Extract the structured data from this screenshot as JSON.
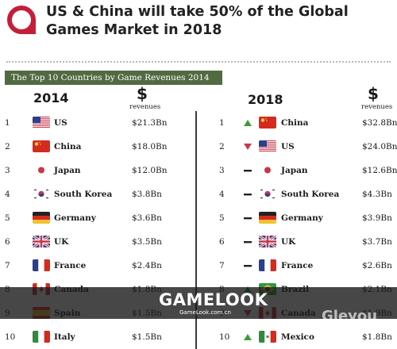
{
  "title": "US & China will take 50% of the Global Games Market in 2018",
  "table_title": "The Top 10 Countries by Game Revenues 2014 vs. 2018",
  "revenue_symbol": "$",
  "revenue_label": "revenues",
  "watermark": {
    "main": "GAMELOOK",
    "sub": "GameLook.com.cn",
    "right": "Gleyou"
  },
  "colors": {
    "logo": "#c41e3a",
    "banner": "#526a41",
    "up": "#3f9a3a",
    "down": "#c8374a",
    "same": "#222222"
  },
  "chart_data": {
    "type": "table",
    "columns": [
      {
        "year": "2014",
        "rows": [
          {
            "rank": "1",
            "country": "US",
            "revenue": "$21.3Bn",
            "flag": "us"
          },
          {
            "rank": "2",
            "country": "China",
            "revenue": "$18.0Bn",
            "flag": "cn"
          },
          {
            "rank": "3",
            "country": "Japan",
            "revenue": "$12.0Bn",
            "flag": "jp"
          },
          {
            "rank": "4",
            "country": "South Korea",
            "revenue": "$3.8Bn",
            "flag": "kr"
          },
          {
            "rank": "5",
            "country": "Germany",
            "revenue": "$3.6Bn",
            "flag": "de"
          },
          {
            "rank": "6",
            "country": "UK",
            "revenue": "$3.5Bn",
            "flag": "uk"
          },
          {
            "rank": "7",
            "country": "France",
            "revenue": "$2.4Bn",
            "flag": "fr"
          },
          {
            "rank": "8",
            "country": "Canada",
            "revenue": "$1.8Bn",
            "flag": "ca"
          },
          {
            "rank": "9",
            "country": "Spain",
            "revenue": "$1.5Bn",
            "flag": "es"
          },
          {
            "rank": "10",
            "country": "Italy",
            "revenue": "$1.5Bn",
            "flag": "it"
          }
        ]
      },
      {
        "year": "2018",
        "rows": [
          {
            "rank": "1",
            "country": "China",
            "revenue": "$32.8Bn",
            "flag": "cn",
            "change": "up"
          },
          {
            "rank": "2",
            "country": "US",
            "revenue": "$24.0Bn",
            "flag": "us",
            "change": "down"
          },
          {
            "rank": "3",
            "country": "Japan",
            "revenue": "$12.6Bn",
            "flag": "jp",
            "change": "same"
          },
          {
            "rank": "4",
            "country": "South Korea",
            "revenue": "$4.3Bn",
            "flag": "kr",
            "change": "same"
          },
          {
            "rank": "5",
            "country": "Germany",
            "revenue": "$3.9Bn",
            "flag": "de",
            "change": "same"
          },
          {
            "rank": "6",
            "country": "UK",
            "revenue": "$3.7Bn",
            "flag": "uk",
            "change": "same"
          },
          {
            "rank": "7",
            "country": "France",
            "revenue": "$2.6Bn",
            "flag": "fr",
            "change": "same"
          },
          {
            "rank": "8",
            "country": "Brazil",
            "revenue": "$2.1Bn",
            "flag": "br",
            "change": "up"
          },
          {
            "rank": "9",
            "country": "Canada",
            "revenue": "$1.9Bn",
            "flag": "ca",
            "change": "down"
          },
          {
            "rank": "10",
            "country": "Mexico",
            "revenue": "$1.8Bn",
            "flag": "mx",
            "change": "up"
          }
        ]
      }
    ]
  }
}
